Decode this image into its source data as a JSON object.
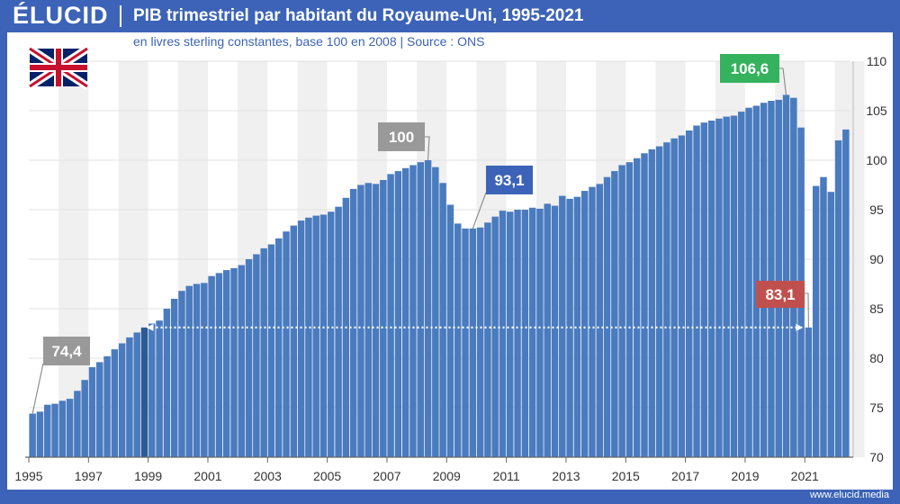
{
  "header": {
    "logo": "ÉLUCID",
    "title": "PIB trimestriel par habitant du Royaume-Uni, 1995-2021"
  },
  "subtitle": "en livres sterling constantes, base 100 en 2008  |  Source : ONS",
  "footer": "www.elucid.media",
  "flag_icon": "uk-flag-icon",
  "colors": {
    "brand": "#3c63b7",
    "bar": "#4a7bbf",
    "highlight_bar": "#2d5a93",
    "green": "#34b25d",
    "red": "#c0504d",
    "gray": "#999999"
  },
  "chart_data": {
    "type": "bar",
    "xlabel": "",
    "ylabel": "",
    "ylim": [
      70,
      110
    ],
    "yticks": [
      70,
      75,
      80,
      85,
      90,
      95,
      100,
      105,
      110
    ],
    "xticks": [
      "1995",
      "1997",
      "1999",
      "2001",
      "2003",
      "2005",
      "2007",
      "2009",
      "2011",
      "2013",
      "2015",
      "2017",
      "2019",
      "2021"
    ],
    "start_year": 1995,
    "values": [
      74.4,
      74.6,
      75.3,
      75.4,
      75.7,
      75.9,
      76.7,
      77.8,
      79.1,
      79.6,
      80.2,
      80.9,
      81.5,
      82.1,
      82.6,
      83.1,
      83.5,
      83.8,
      85,
      86,
      86.8,
      87.3,
      87.5,
      87.6,
      88.3,
      88.6,
      88.9,
      89.1,
      89.4,
      90,
      90.5,
      91.1,
      91.5,
      92.1,
      92.8,
      93.4,
      93.9,
      94.2,
      94.4,
      94.5,
      94.8,
      95.3,
      96.2,
      97.1,
      97.5,
      97.7,
      97.6,
      98,
      98.6,
      98.9,
      99.2,
      99.5,
      99.8,
      100,
      99.3,
      97.7,
      95.5,
      93.6,
      93.1,
      93.1,
      93.2,
      93.7,
      94.3,
      94.9,
      94.8,
      95,
      95,
      95.2,
      95.1,
      95.6,
      95.4,
      96.4,
      96.1,
      96.3,
      96.9,
      97.3,
      97.6,
      98.3,
      98.9,
      99.5,
      99.8,
      100.2,
      100.7,
      101.1,
      101.4,
      101.8,
      102.2,
      102.5,
      103,
      103.5,
      103.8,
      104,
      104.2,
      104.4,
      104.5,
      104.9,
      105.3,
      105.5,
      105.8,
      106,
      106.1,
      106.6,
      106.3,
      103.3,
      83.1,
      97.4,
      98.3,
      96.8,
      102,
      103.1
    ],
    "highlight_index": 15,
    "annotations": [
      {
        "label": "74,4",
        "index": 0,
        "value": 74.4,
        "color": "gray"
      },
      {
        "label": "100",
        "index": 53,
        "value": 100,
        "color": "gray"
      },
      {
        "label": "93,1",
        "index": 59,
        "value": 93.1,
        "color": "blue"
      },
      {
        "label": "106,6",
        "index": 101,
        "value": 106.6,
        "color": "green"
      },
      {
        "label": "83,1",
        "index": 104,
        "value": 83.1,
        "color": "red"
      }
    ],
    "arrow": {
      "from_index": 15,
      "to_index": 104,
      "value": 83.1
    }
  }
}
